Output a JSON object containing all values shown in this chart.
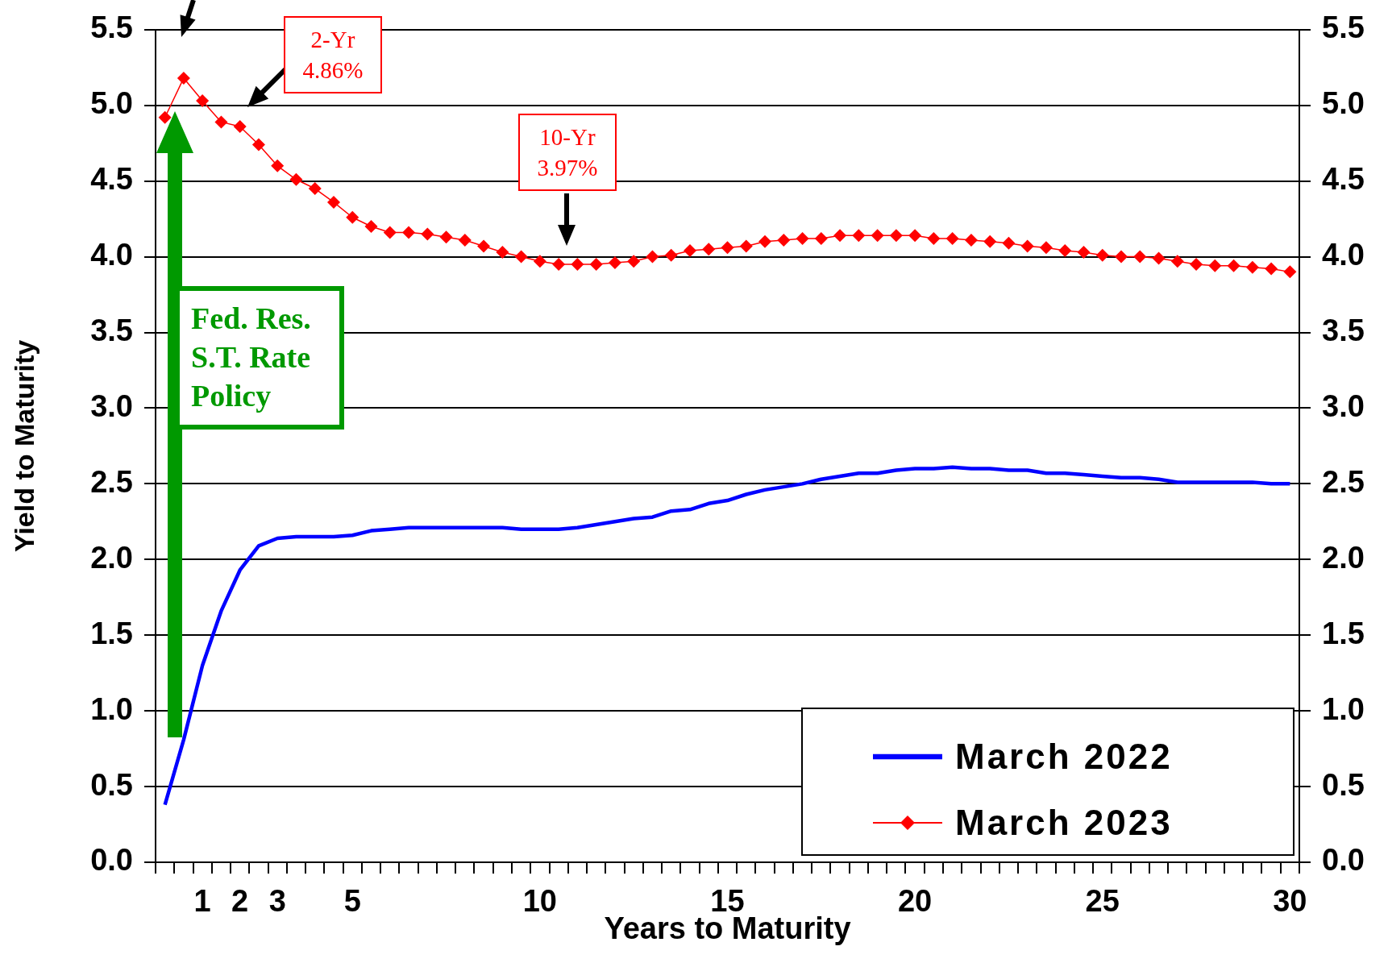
{
  "chart_data": {
    "type": "line",
    "xlabel": "Years to Maturity",
    "ylabel": "Yield to Maturity",
    "categories": [
      null,
      null,
      "1",
      null,
      "2",
      null,
      "3",
      null,
      null,
      null,
      "5",
      null,
      null,
      null,
      null,
      null,
      null,
      null,
      null,
      null,
      "10",
      null,
      null,
      null,
      null,
      null,
      null,
      null,
      null,
      null,
      "15",
      null,
      null,
      null,
      null,
      null,
      null,
      null,
      null,
      null,
      "20",
      null,
      null,
      null,
      null,
      null,
      null,
      null,
      null,
      null,
      "25",
      null,
      null,
      null,
      null,
      null,
      null,
      null,
      null,
      null,
      "30"
    ],
    "series": [
      {
        "name": "March 2022",
        "color": "#0000ff",
        "marker": "none",
        "values": [
          0.38,
          0.81,
          1.3,
          1.66,
          1.93,
          2.09,
          2.14,
          2.15,
          2.15,
          2.15,
          2.16,
          2.19,
          2.2,
          2.21,
          2.21,
          2.21,
          2.21,
          2.21,
          2.21,
          2.2,
          2.2,
          2.2,
          2.21,
          2.23,
          2.25,
          2.27,
          2.28,
          2.32,
          2.33,
          2.37,
          2.39,
          2.43,
          2.46,
          2.48,
          2.5,
          2.53,
          2.55,
          2.57,
          2.57,
          2.59,
          2.6,
          2.6,
          2.61,
          2.6,
          2.6,
          2.59,
          2.59,
          2.57,
          2.57,
          2.56,
          2.55,
          2.54,
          2.54,
          2.53,
          2.51,
          2.51,
          2.51,
          2.51,
          2.51,
          2.5,
          2.5
        ]
      },
      {
        "name": "March 2023",
        "color": "#ff0000",
        "marker": "diamond",
        "values": [
          4.92,
          5.18,
          5.03,
          4.89,
          4.86,
          4.74,
          4.6,
          4.51,
          4.45,
          4.36,
          4.26,
          4.2,
          4.16,
          4.16,
          4.15,
          4.13,
          4.11,
          4.07,
          4.03,
          4.0,
          3.97,
          3.95,
          3.95,
          3.95,
          3.96,
          3.97,
          4.0,
          4.01,
          4.04,
          4.05,
          4.06,
          4.07,
          4.1,
          4.11,
          4.12,
          4.12,
          4.14,
          4.14,
          4.14,
          4.14,
          4.14,
          4.12,
          4.12,
          4.11,
          4.1,
          4.09,
          4.07,
          4.06,
          4.04,
          4.03,
          4.01,
          4.0,
          4.0,
          3.99,
          3.97,
          3.95,
          3.94,
          3.94,
          3.93,
          3.92,
          3.9
        ]
      }
    ],
    "ylim": [
      0,
      5.5
    ],
    "yticks": [
      {
        "value": 0,
        "label": "0.0"
      },
      {
        "value": 0.5,
        "label": "0.5"
      },
      {
        "value": 1,
        "label": "1.0"
      },
      {
        "value": 1.5,
        "label": "1.5"
      },
      {
        "value": 2,
        "label": "2.0"
      },
      {
        "value": 2.5,
        "label": "2.5"
      },
      {
        "value": 3,
        "label": "3.0"
      },
      {
        "value": 3.5,
        "label": "3.5"
      },
      {
        "value": 4,
        "label": "4.0"
      },
      {
        "value": 4.5,
        "label": "4.5"
      },
      {
        "value": 5,
        "label": "5.0"
      },
      {
        "value": 5.5,
        "label": "5.5"
      }
    ],
    "y2lim": [
      0,
      5.5
    ],
    "y2ticks": [
      {
        "value": 0,
        "label": "0.0"
      },
      {
        "value": 0.5,
        "label": "0.5"
      },
      {
        "value": 1,
        "label": "1.0"
      },
      {
        "value": 1.5,
        "label": "1.5"
      },
      {
        "value": 2,
        "label": "2.0"
      },
      {
        "value": 2.5,
        "label": "2.5"
      },
      {
        "value": 3,
        "label": "3.0"
      },
      {
        "value": 3.5,
        "label": "3.5"
      },
      {
        "value": 4,
        "label": "4.0"
      },
      {
        "value": 4.5,
        "label": "4.5"
      },
      {
        "value": 5,
        "label": "5.0"
      },
      {
        "value": 5.5,
        "label": "5.5"
      }
    ],
    "grid": "y",
    "legend": "bottom right",
    "annotations": [
      "2-Yr\n4.86%",
      "10-Yr\n3.97%",
      "Fed. Res.\nS.T. Rate\nPolicy"
    ]
  }
}
